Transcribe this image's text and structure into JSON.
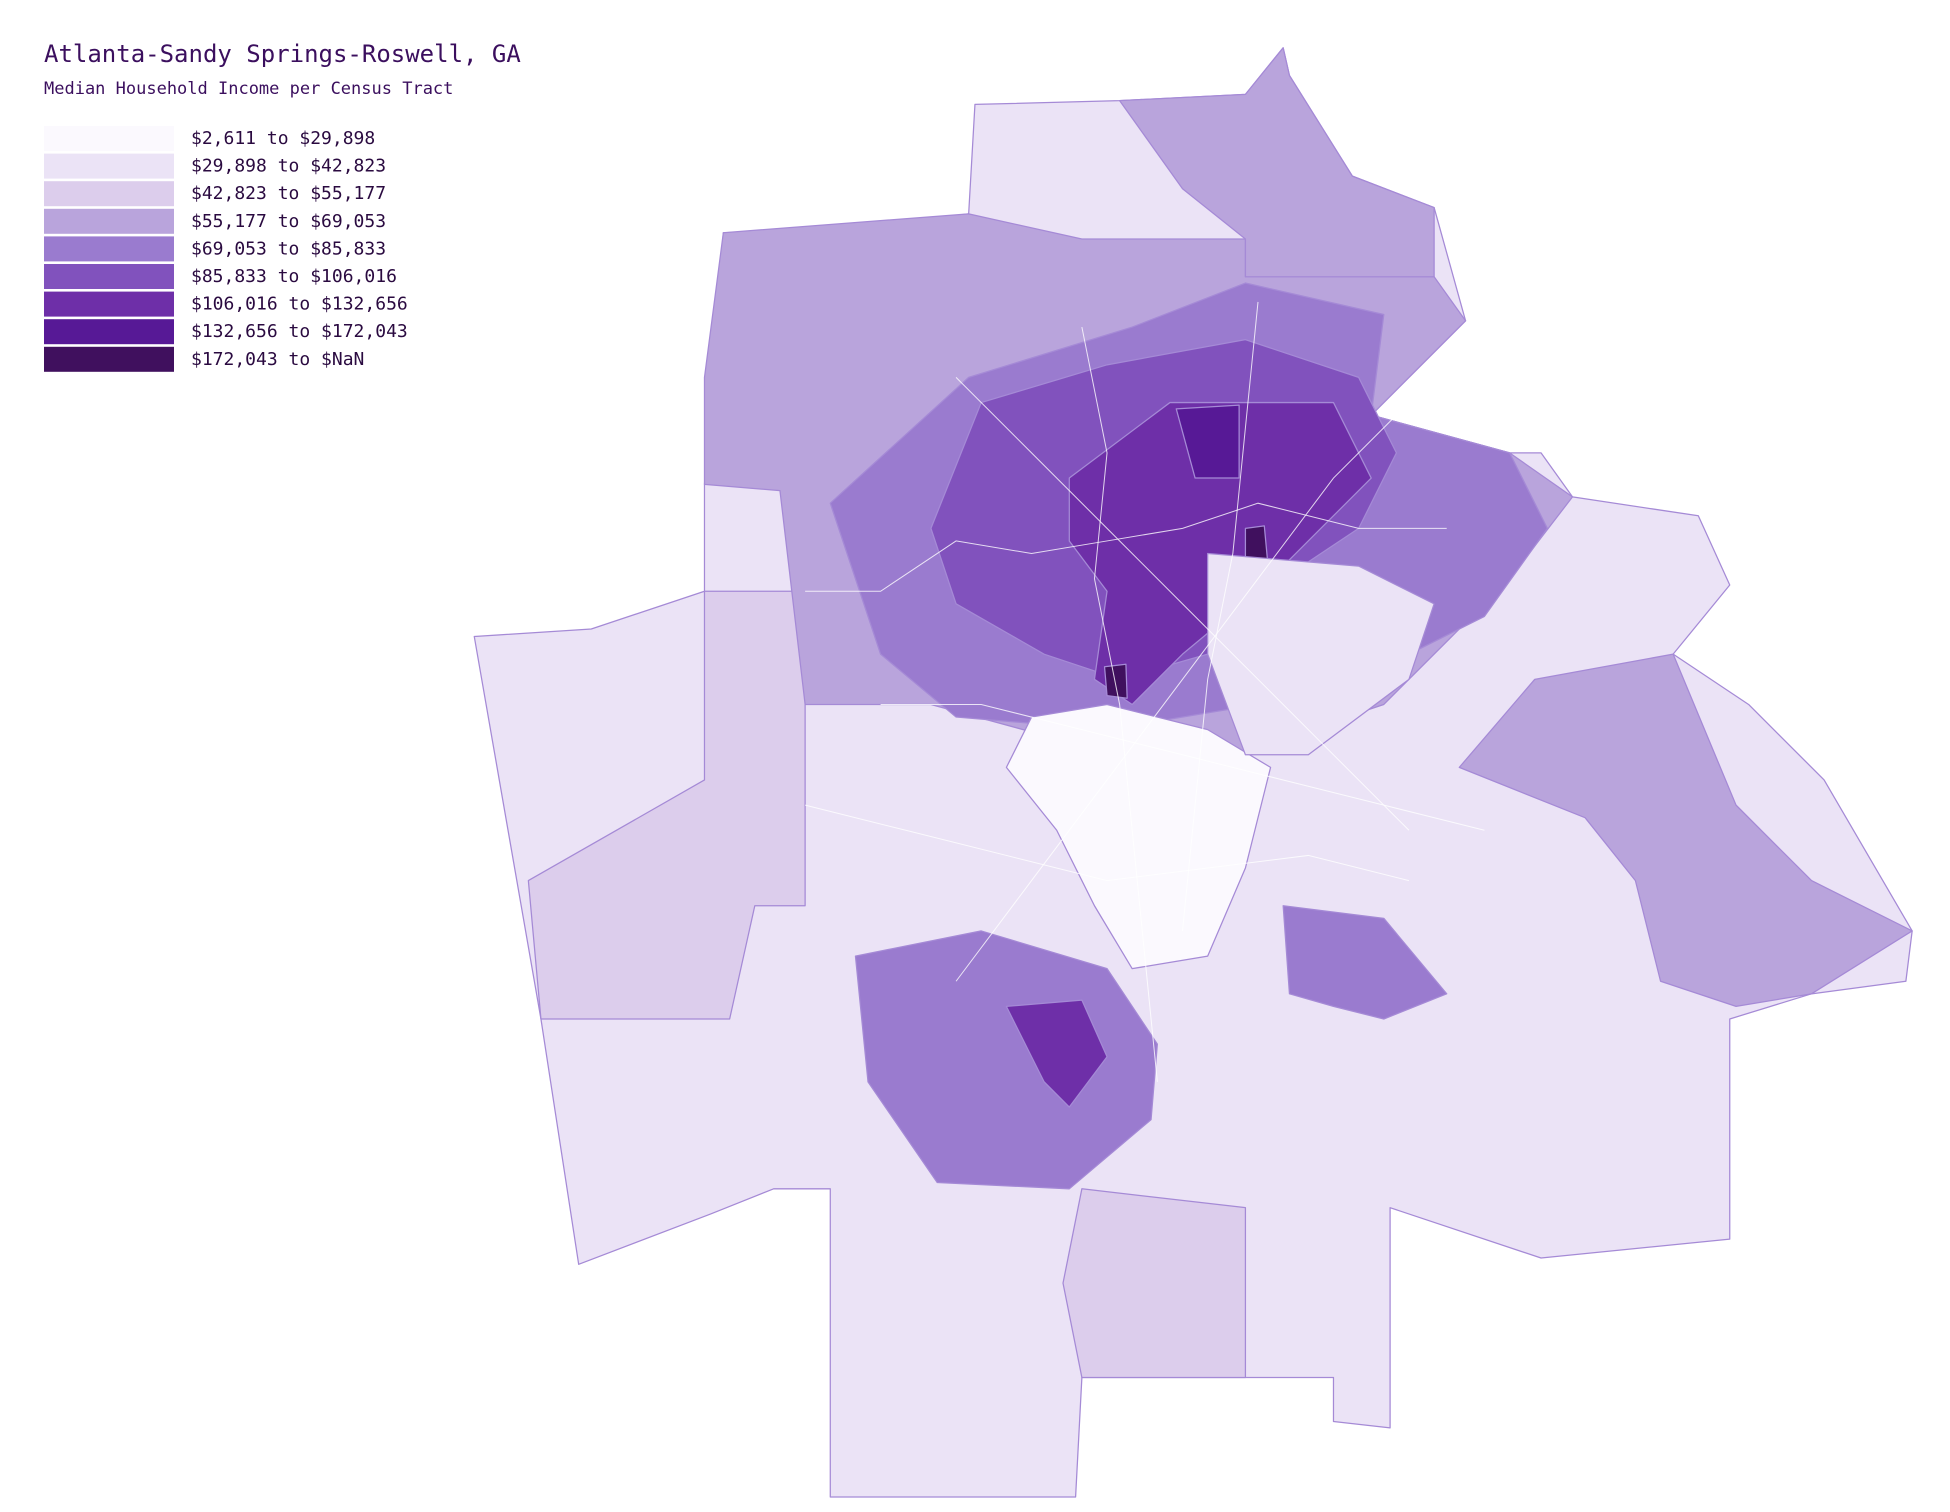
{
  "header": {
    "title": "Atlanta-Sandy Springs-Roswell, GA",
    "subtitle": "Median Household Income per Census Tract"
  },
  "legend": [
    {
      "label": "$2,611 to $29,898",
      "color": "#fbf9fe"
    },
    {
      "label": "$29,898 to $42,823",
      "color": "#ebe3f6"
    },
    {
      "label": "$42,823 to $55,177",
      "color": "#dccdec"
    },
    {
      "label": "$55,177 to $69,053",
      "color": "#b9a4dc"
    },
    {
      "label": "$69,053 to $85,833",
      "color": "#9a7bcf"
    },
    {
      "label": "$85,833 to $106,016",
      "color": "#8152bd"
    },
    {
      "label": "$106,016 to $132,656",
      "color": "#6e2fa8"
    },
    {
      "label": "$132,656 to $172,043",
      "color": "#571996"
    },
    {
      "label": "$172,043 to $NaN",
      "color": "#40105e"
    }
  ]
}
